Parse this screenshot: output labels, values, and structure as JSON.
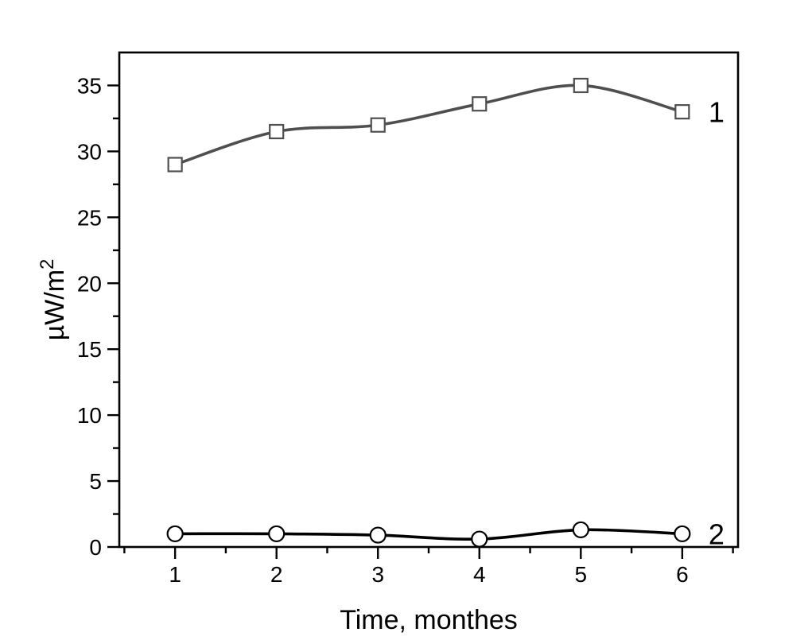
{
  "page": {
    "background": "#ffffff"
  },
  "chart_data": {
    "type": "line",
    "title": "",
    "xlabel": "Time, monthes",
    "ylabel": "µW/m²",
    "ylabel_base": "µW/m",
    "ylabel_sup": "2",
    "x": [
      1,
      2,
      3,
      4,
      5,
      6
    ],
    "x_tick_labels": [
      "1",
      "2",
      "3",
      "4",
      "5",
      "6"
    ],
    "y_ticks": [
      0,
      5,
      10,
      15,
      20,
      25,
      30,
      35
    ],
    "y_tick_labels": [
      "0",
      "5",
      "10",
      "15",
      "20",
      "25",
      "30",
      "35"
    ],
    "xlim": [
      0.45,
      6.55
    ],
    "ylim": [
      0,
      37.5
    ],
    "x_minor_step": 0.5,
    "y_minor_step": 2.5,
    "grid": false,
    "frame": true,
    "legend_position": "inline-end-of-line",
    "axis_color": "#000000",
    "text_color": "#000000",
    "series": [
      {
        "name": "1",
        "marker": "square",
        "marker_fill": "#ffffff",
        "color": "#4f4f4f",
        "smooth": true,
        "values": [
          29,
          31.5,
          32,
          33.6,
          35,
          33
        ]
      },
      {
        "name": "2",
        "marker": "circle",
        "marker_fill": "#ffffff",
        "color": "#000000",
        "smooth": true,
        "values": [
          1.0,
          1.0,
          0.9,
          0.6,
          1.3,
          1.0
        ]
      }
    ]
  }
}
